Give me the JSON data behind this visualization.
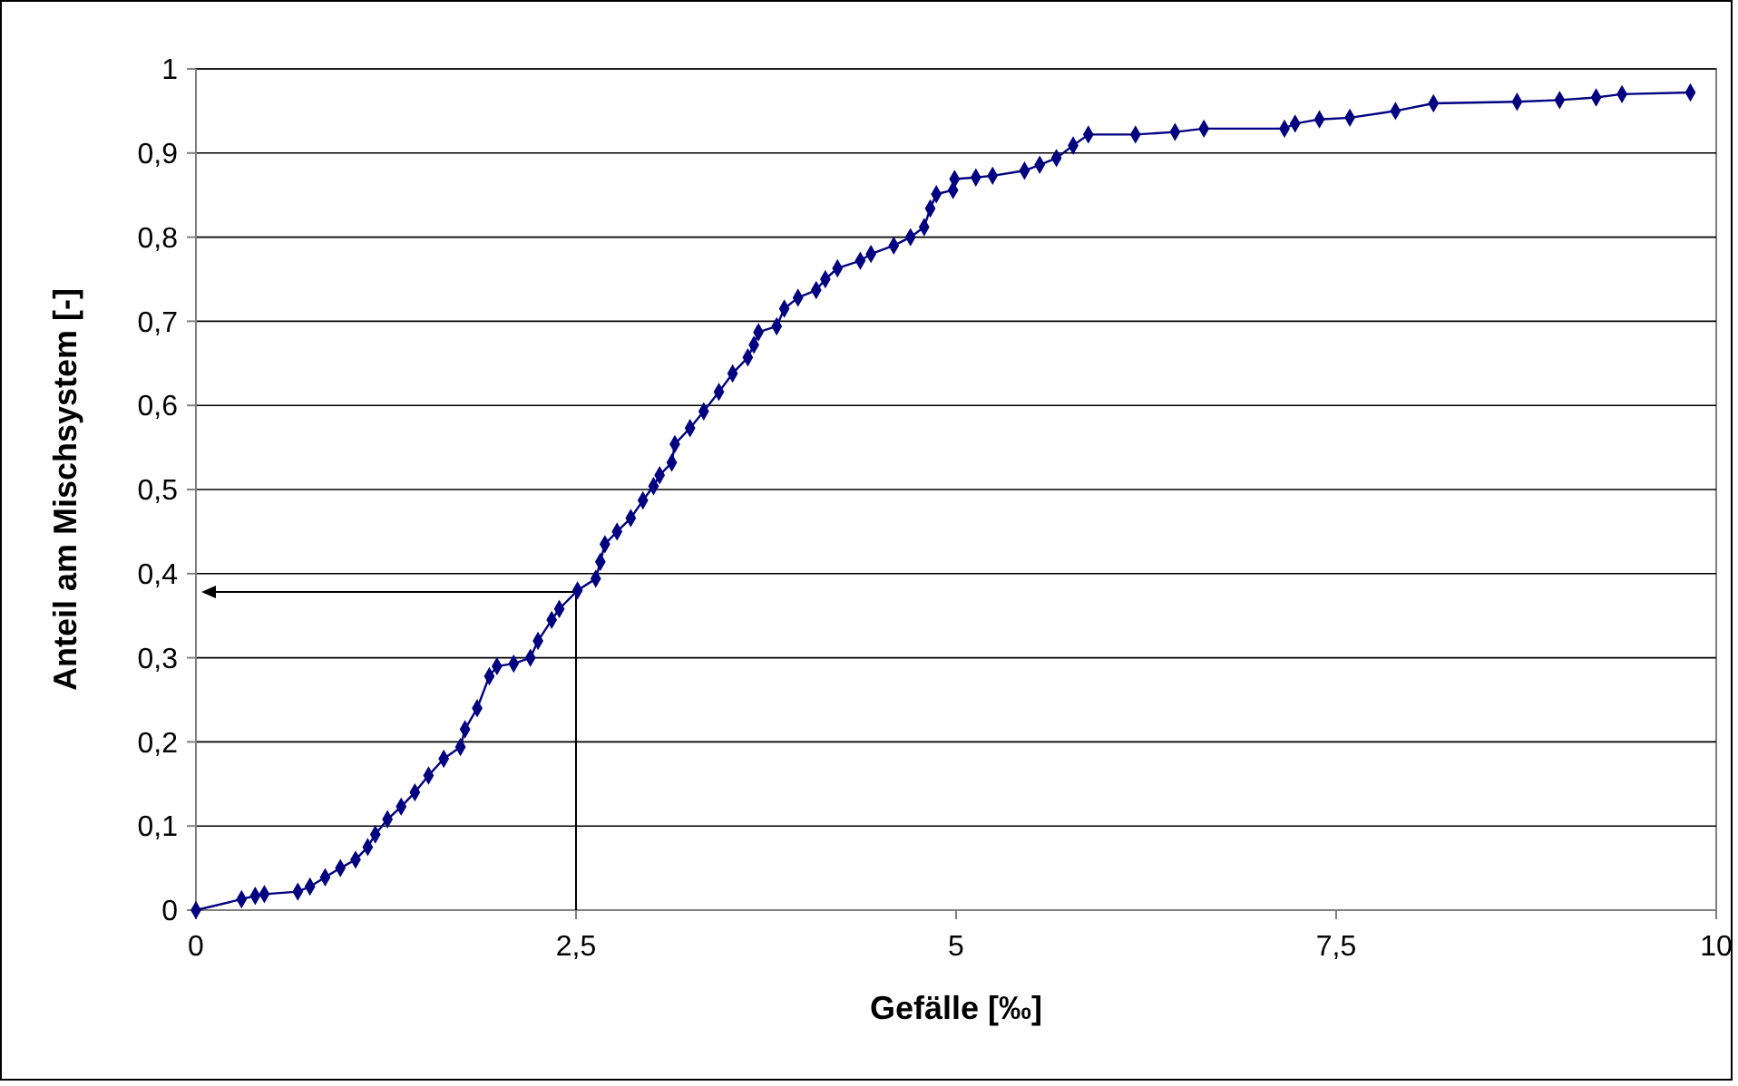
{
  "chart_data": {
    "type": "line",
    "xlabel": "Gefälle [‰]",
    "ylabel": "Anteil am Mischsystem [-]",
    "xlim": [
      0,
      10
    ],
    "xticks": [
      0,
      {
        "value": 2.5,
        "label": "2,5"
      },
      5,
      {
        "value": 7.5,
        "label": "7,5"
      },
      10
    ],
    "ylim": [
      0,
      1
    ],
    "yticks": [
      0,
      {
        "value": 0.1,
        "label": "0,1"
      },
      {
        "value": 0.2,
        "label": "0,2"
      },
      {
        "value": 0.3,
        "label": "0,3"
      },
      {
        "value": 0.4,
        "label": "0,4"
      },
      {
        "value": 0.5,
        "label": "0,5"
      },
      {
        "value": 0.6,
        "label": "0,6"
      },
      {
        "value": 0.7,
        "label": "0,7"
      },
      {
        "value": 0.8,
        "label": "0,8"
      },
      {
        "value": 0.9,
        "label": "0,9"
      },
      1
    ],
    "grid": "y",
    "marker": "diamond",
    "line_style": "solid",
    "series": [
      {
        "color": "#000080",
        "x": [
          0,
          0.3,
          0.39,
          0.45,
          0.67,
          0.75,
          0.85,
          0.95,
          1.05,
          1.13,
          1.18,
          1.26,
          1.35,
          1.44,
          1.53,
          1.63,
          1.74,
          1.77,
          1.85,
          1.93,
          1.98,
          2.09,
          2.2,
          2.25,
          2.34,
          2.39,
          2.51,
          2.63,
          2.66,
          2.69,
          2.77,
          2.86,
          2.94,
          3.01,
          3.05,
          3.13,
          3.15,
          3.25,
          3.34,
          3.44,
          3.53,
          3.63,
          3.67,
          3.7,
          3.82,
          3.87,
          3.96,
          4.08,
          4.14,
          4.22,
          4.37,
          4.44,
          4.59,
          4.7,
          4.79,
          4.83,
          4.87,
          4.98,
          4.99,
          5.13,
          5.24,
          5.45,
          5.55,
          5.66,
          5.77,
          5.87,
          6.18,
          6.44,
          6.63,
          7.16,
          7.23,
          7.39,
          7.59,
          7.89,
          8.14,
          8.69,
          8.97,
          9.21,
          9.38,
          9.83
        ],
        "values": [
          0,
          0.013,
          0.017,
          0.019,
          0.022,
          0.028,
          0.039,
          0.05,
          0.06,
          0.075,
          0.09,
          0.108,
          0.123,
          0.14,
          0.16,
          0.18,
          0.194,
          0.215,
          0.24,
          0.278,
          0.29,
          0.293,
          0.3,
          0.32,
          0.345,
          0.358,
          0.38,
          0.394,
          0.414,
          0.435,
          0.45,
          0.466,
          0.487,
          0.504,
          0.517,
          0.532,
          0.554,
          0.573,
          0.593,
          0.616,
          0.638,
          0.657,
          0.672,
          0.687,
          0.694,
          0.715,
          0.728,
          0.737,
          0.75,
          0.763,
          0.772,
          0.78,
          0.79,
          0.8,
          0.812,
          0.834,
          0.851,
          0.856,
          0.869,
          0.871,
          0.873,
          0.879,
          0.886,
          0.894,
          0.909,
          0.922,
          0.922,
          0.925,
          0.929,
          0.929,
          0.935,
          0.94,
          0.942,
          0.95,
          0.959,
          0.961,
          0.963,
          0.966,
          0.97,
          0.972
        ]
      }
    ]
  }
}
